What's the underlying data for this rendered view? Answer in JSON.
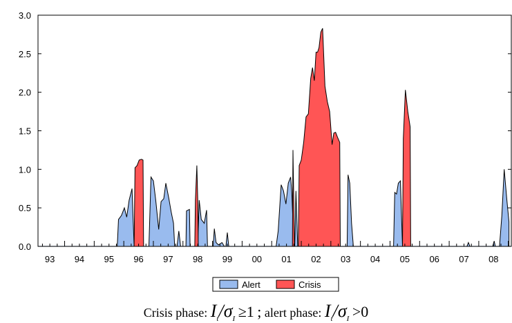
{
  "chart_data": {
    "type": "area",
    "title": "",
    "xlabel": "",
    "ylabel": "",
    "ylim": [
      0,
      3.0
    ],
    "xlim": [
      1992.6,
      2008.6
    ],
    "y_ticks": [
      "0.0",
      "0.5",
      "1.0",
      "1.5",
      "2.0",
      "2.5",
      "3.0"
    ],
    "y_tick_values": [
      0,
      0.5,
      1.0,
      1.5,
      2.0,
      2.5,
      3.0
    ],
    "x_ticks": [
      "93",
      "94",
      "95",
      "96",
      "97",
      "98",
      "99",
      "00",
      "01",
      "02",
      "03",
      "04",
      "05",
      "06",
      "07",
      "08"
    ],
    "x_tick_positions": [
      1993,
      1994,
      1995,
      1996,
      1997,
      1998,
      1999,
      2000,
      2001,
      2002,
      2003,
      2004,
      2005,
      2006,
      2007,
      2008
    ],
    "grid": false,
    "legend_position": "bottom-center",
    "series": [
      {
        "name": "Alert",
        "color": "#99BBEE",
        "segments": [
          [
            [
              1995.28,
              0
            ],
            [
              1995.32,
              0.35
            ],
            [
              1995.42,
              0.4
            ],
            [
              1995.52,
              0.5
            ],
            [
              1995.6,
              0.38
            ],
            [
              1995.68,
              0.6
            ],
            [
              1995.78,
              0.75
            ],
            [
              1995.85,
              0
            ]
          ],
          [
            [
              1996.35,
              0
            ],
            [
              1996.42,
              0.9
            ],
            [
              1996.5,
              0.85
            ],
            [
              1996.58,
              0.6
            ],
            [
              1996.68,
              0.22
            ],
            [
              1996.76,
              0.58
            ],
            [
              1996.85,
              0.62
            ],
            [
              1996.92,
              0.82
            ],
            [
              1997.02,
              0.63
            ],
            [
              1997.1,
              0.45
            ],
            [
              1997.18,
              0.3
            ],
            [
              1997.22,
              0
            ]
          ],
          [
            [
              1997.3,
              0
            ],
            [
              1997.36,
              0.2
            ],
            [
              1997.42,
              0
            ]
          ],
          [
            [
              1997.6,
              0
            ],
            [
              1997.62,
              0.46
            ],
            [
              1997.72,
              0.48
            ],
            [
              1997.74,
              0
            ]
          ],
          [
            [
              1998.0,
              0
            ],
            [
              1998.05,
              0.6
            ],
            [
              1998.12,
              0.35
            ],
            [
              1998.22,
              0.3
            ],
            [
              1998.3,
              0.47
            ],
            [
              1998.33,
              0
            ]
          ],
          [
            [
              1998.52,
              0
            ],
            [
              1998.56,
              0.23
            ],
            [
              1998.62,
              0.05
            ],
            [
              1998.7,
              0.02
            ],
            [
              1998.82,
              0.05
            ],
            [
              1998.9,
              0
            ]
          ],
          [
            [
              1998.95,
              0
            ],
            [
              1999.0,
              0.18
            ],
            [
              1999.05,
              0
            ]
          ],
          [
            [
              2000.65,
              0
            ],
            [
              2000.72,
              0.2
            ],
            [
              2000.82,
              0.8
            ],
            [
              2000.9,
              0.72
            ],
            [
              2000.98,
              0.55
            ],
            [
              2001.06,
              0.82
            ],
            [
              2001.14,
              0.9
            ],
            [
              2001.18,
              0.7
            ],
            [
              2001.25,
              0
            ]
          ],
          [
            [
              2001.28,
              0
            ],
            [
              2001.32,
              0.72
            ],
            [
              2001.38,
              0
            ]
          ],
          [
            [
              2003.05,
              0
            ],
            [
              2003.08,
              0.93
            ],
            [
              2003.14,
              0.82
            ],
            [
              2003.2,
              0.3
            ],
            [
              2003.26,
              0
            ]
          ],
          [
            [
              2004.62,
              0
            ],
            [
              2004.66,
              0.7
            ],
            [
              2004.72,
              0.68
            ],
            [
              2004.78,
              0.82
            ],
            [
              2004.85,
              0.85
            ],
            [
              2004.92,
              0
            ]
          ],
          [
            [
              2007.1,
              0
            ],
            [
              2007.15,
              0.05
            ],
            [
              2007.2,
              0
            ]
          ],
          [
            [
              2007.97,
              0
            ],
            [
              2008.02,
              0.07
            ],
            [
              2008.06,
              0
            ]
          ],
          [
            [
              2008.2,
              0
            ],
            [
              2008.28,
              0.4
            ],
            [
              2008.36,
              1.0
            ],
            [
              2008.45,
              0.6
            ],
            [
              2008.52,
              0.32
            ],
            [
              2008.52,
              0
            ]
          ]
        ]
      },
      {
        "name": "Crisis",
        "color": "#FF5555",
        "segments": [
          [
            [
              1995.85,
              0
            ],
            [
              1995.88,
              1.02
            ],
            [
              1995.95,
              1.05
            ],
            [
              1996.02,
              1.12
            ],
            [
              1996.1,
              1.13
            ],
            [
              1996.15,
              1.12
            ],
            [
              1996.17,
              0
            ]
          ],
          [
            [
              1997.9,
              0
            ],
            [
              1997.92,
              0.6
            ],
            [
              1997.97,
              1.05
            ],
            [
              1998.0,
              0.6
            ],
            [
              1998.02,
              0
            ]
          ],
          [
            [
              2001.2,
              0
            ],
            [
              2001.22,
              1.25
            ],
            [
              2001.27,
              0
            ]
          ],
          [
            [
              2001.4,
              0
            ],
            [
              2001.43,
              1.05
            ],
            [
              2001.5,
              1.12
            ],
            [
              2001.58,
              1.35
            ],
            [
              2001.66,
              1.68
            ],
            [
              2001.74,
              1.72
            ],
            [
              2001.82,
              2.18
            ],
            [
              2001.88,
              2.32
            ],
            [
              2001.94,
              2.15
            ],
            [
              2002.0,
              2.52
            ],
            [
              2002.05,
              2.52
            ],
            [
              2002.1,
              2.58
            ],
            [
              2002.16,
              2.78
            ],
            [
              2002.22,
              2.83
            ],
            [
              2002.3,
              2.08
            ],
            [
              2002.38,
              1.88
            ],
            [
              2002.46,
              1.75
            ],
            [
              2002.54,
              1.32
            ],
            [
              2002.6,
              1.47
            ],
            [
              2002.66,
              1.48
            ],
            [
              2002.72,
              1.42
            ],
            [
              2002.8,
              1.35
            ],
            [
              2002.82,
              0
            ]
          ],
          [
            [
              2004.92,
              0
            ],
            [
              2004.95,
              1.4
            ],
            [
              2005.02,
              2.03
            ],
            [
              2005.1,
              1.75
            ],
            [
              2005.18,
              1.55
            ],
            [
              2005.2,
              0
            ]
          ]
        ]
      }
    ],
    "baseline_color": "#4466AA",
    "outline_color": "#000000"
  },
  "legend": {
    "alert_label": "Alert",
    "crisis_label": "Crisis"
  },
  "caption": {
    "crisis_text": "Crisis phase:",
    "crisis_formula_left": "I",
    "crisis_formula_sub": "t",
    "crisis_formula_mid": "/σ",
    "crisis_formula_sub2": "I",
    "crisis_formula_rel": "≥1",
    "separator": ";",
    "alert_text": "alert phase:",
    "alert_formula_left": "I",
    "alert_formula_sub": "t",
    "alert_formula_mid": "/σ",
    "alert_formula_sub2": "I",
    "alert_formula_rel": ">0"
  }
}
